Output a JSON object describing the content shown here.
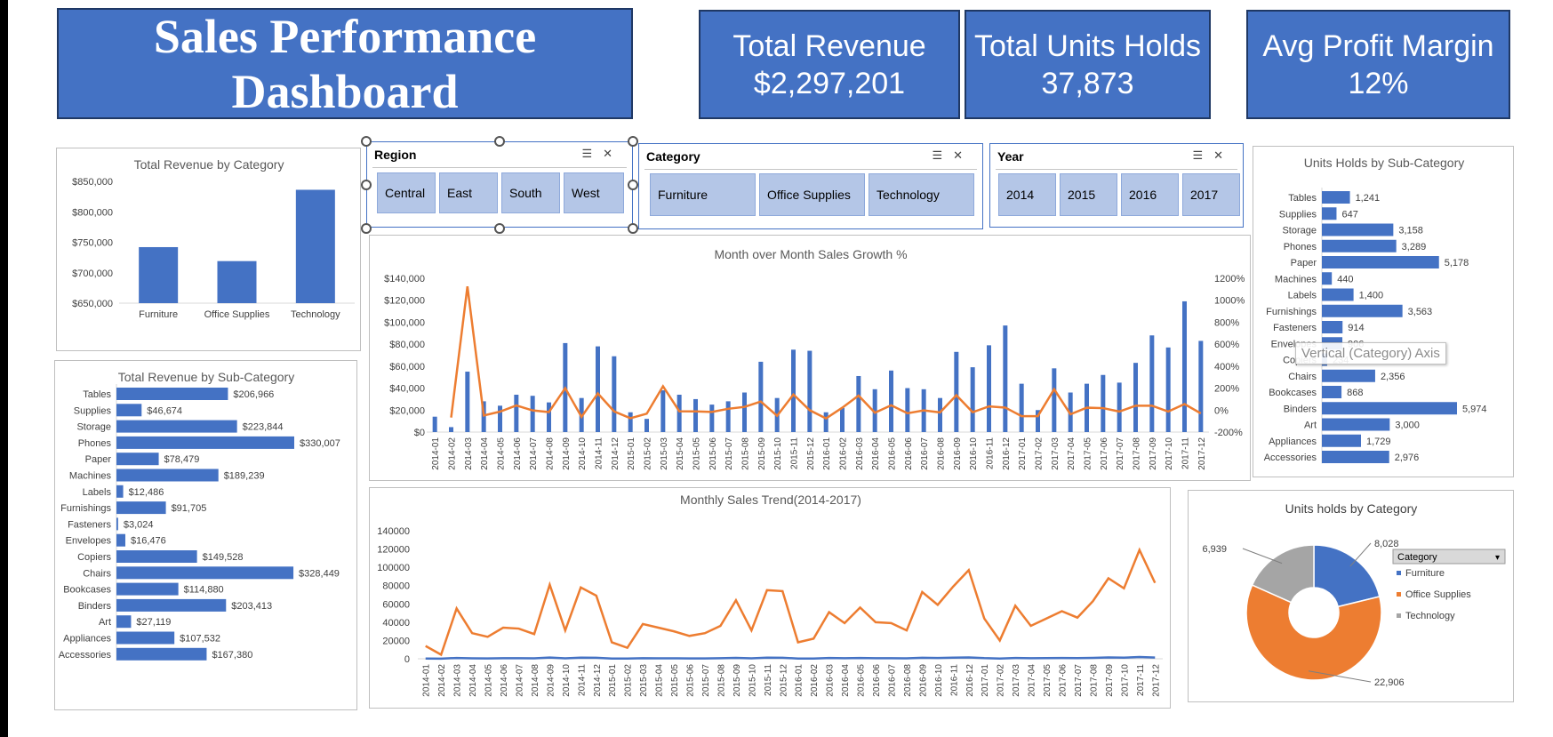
{
  "header": {
    "title": "Sales Performance Dashboard"
  },
  "kpis": [
    {
      "label": "Total Revenue",
      "value": "$2,297,201"
    },
    {
      "label": "Total Units Holds",
      "value": "37,873"
    },
    {
      "label": "Avg Profit Margin",
      "value": "12%"
    }
  ],
  "slicers": {
    "region": {
      "title": "Region",
      "items": [
        "Central",
        "East",
        "South",
        "West"
      ]
    },
    "category": {
      "title": "Category",
      "items": [
        "Furniture",
        "Office Supplies",
        "Technology"
      ]
    },
    "year": {
      "title": "Year",
      "items": [
        "2014",
        "2015",
        "2016",
        "2017"
      ]
    }
  },
  "icons": {
    "multi_select": "multi-select-icon",
    "clear_filter": "clear-filter-icon"
  },
  "colors": {
    "blue": "#4472C4",
    "orange": "#ED7D31",
    "gray": "#A5A5A5"
  },
  "tooltip": "Vertical (Category) Axis",
  "chart_data": [
    {
      "id": "rev_by_cat",
      "type": "bar",
      "title": "Total Revenue by Category",
      "categories": [
        "Furniture",
        "Office Supplies",
        "Technology"
      ],
      "values": [
        742000,
        719047,
        836154
      ],
      "ylim": [
        650000,
        850000
      ],
      "yticks": [
        "$650,000",
        "$700,000",
        "$750,000",
        "$800,000",
        "$850,000"
      ]
    },
    {
      "id": "rev_by_subcat",
      "type": "bar",
      "orientation": "horizontal",
      "title": "Total Revenue by Sub-Category",
      "categories": [
        "Tables",
        "Supplies",
        "Storage",
        "Phones",
        "Paper",
        "Machines",
        "Labels",
        "Furnishings",
        "Fasteners",
        "Envelopes",
        "Copiers",
        "Chairs",
        "Bookcases",
        "Binders",
        "Art",
        "Appliances",
        "Accessories"
      ],
      "values": [
        206966,
        46674,
        223844,
        330007,
        78479,
        189239,
        12486,
        91705,
        3024,
        16476,
        149528,
        328449,
        114880,
        203413,
        27119,
        107532,
        167380
      ],
      "labels": [
        "$206,966",
        "$46,674",
        "$223,844",
        "$330,007",
        "$78,479",
        "$189,239",
        "$12,486",
        "$91,705",
        "$3,024",
        "$16,476",
        "$149,528",
        "$328,449",
        "$114,880",
        "$203,413",
        "$27,119",
        "$107,532",
        "$167,380"
      ]
    },
    {
      "id": "units_by_subcat",
      "type": "bar",
      "orientation": "horizontal",
      "title": "Units Holds by Sub-Category",
      "categories": [
        "Tables",
        "Supplies",
        "Storage",
        "Phones",
        "Paper",
        "Machines",
        "Labels",
        "Furnishings",
        "Fasteners",
        "Envelopes",
        "Copiers",
        "Chairs",
        "Bookcases",
        "Binders",
        "Art",
        "Appliances",
        "Accessories"
      ],
      "values": [
        1241,
        647,
        3158,
        3289,
        5178,
        440,
        1400,
        3563,
        914,
        906,
        234,
        2356,
        868,
        5974,
        3000,
        1729,
        2976
      ],
      "labels": [
        "1,241",
        "647",
        "3,158",
        "3,289",
        "5,178",
        "440",
        "1,400",
        "3,563",
        "914",
        "906",
        "234",
        "2,356",
        "868",
        "5,974",
        "3,000",
        "1,729",
        "2,976"
      ]
    },
    {
      "id": "mom_growth",
      "type": "bar",
      "title": "Month over Month Sales Growth %",
      "x": [
        "2014-01",
        "2014-02",
        "2014-03",
        "2014-04",
        "2014-05",
        "2014-06",
        "2014-07",
        "2014-08",
        "2014-09",
        "2014-10",
        "2014-11",
        "2014-12",
        "2015-01",
        "2015-02",
        "2015-03",
        "2015-04",
        "2015-05",
        "2015-06",
        "2015-07",
        "2015-08",
        "2015-09",
        "2015-10",
        "2015-11",
        "2015-12",
        "2016-01",
        "2016-02",
        "2016-03",
        "2016-04",
        "2016-05",
        "2016-06",
        "2016-07",
        "2016-08",
        "2016-09",
        "2016-10",
        "2016-11",
        "2016-12",
        "2017-01",
        "2017-02",
        "2017-03",
        "2017-04",
        "2017-05",
        "2017-06",
        "2017-07",
        "2017-08",
        "2017-09",
        "2017-10",
        "2017-11",
        "2017-12"
      ],
      "series": [
        {
          "type": "bar",
          "axis": "left",
          "values": [
            14000,
            4500,
            55000,
            28000,
            24000,
            34000,
            33000,
            27000,
            81000,
            31000,
            78000,
            69000,
            18000,
            12000,
            38000,
            34000,
            30000,
            25000,
            28000,
            36000,
            64000,
            31000,
            75000,
            74000,
            18000,
            22000,
            51000,
            39000,
            56000,
            40000,
            39000,
            31000,
            73000,
            59000,
            79000,
            97000,
            44000,
            20000,
            58000,
            36000,
            44000,
            52000,
            45000,
            63000,
            88000,
            77000,
            119000,
            83000
          ]
        },
        {
          "type": "line",
          "axis": "right",
          "values": [
            null,
            -68,
            1126,
            -49,
            -14,
            42,
            -3,
            -18,
            200,
            -62,
            152,
            -12,
            -74,
            -33,
            217,
            -11,
            -12,
            -17,
            12,
            29,
            78,
            -52,
            142,
            -1,
            -76,
            22,
            132,
            -24,
            44,
            -29,
            -3,
            -21,
            135,
            -19,
            34,
            23,
            -55,
            -55,
            190,
            -38,
            22,
            18,
            -13,
            40,
            40,
            -13,
            55,
            -30
          ]
        }
      ],
      "ylim_left": [
        0,
        140000
      ],
      "yticks_left": [
        "$0",
        "$20,000",
        "$40,000",
        "$60,000",
        "$80,000",
        "$100,000",
        "$120,000",
        "$140,000"
      ],
      "ylim_right": [
        -200,
        1200
      ],
      "yticks_right": [
        "-200%",
        "0%",
        "200%",
        "400%",
        "600%",
        "800%",
        "1000%",
        "1200%"
      ]
    },
    {
      "id": "monthly_trend",
      "type": "line",
      "title": "Monthly Sales Trend(2014-2017)",
      "x": [
        "2014-01",
        "2014-02",
        "2014-03",
        "2014-04",
        "2014-05",
        "2014-06",
        "2014-07",
        "2014-08",
        "2014-09",
        "2014-10",
        "2014-11",
        "2014-12",
        "2015-01",
        "2015-02",
        "2015-03",
        "2015-04",
        "2015-05",
        "2015-06",
        "2015-07",
        "2015-08",
        "2015-09",
        "2015-10",
        "2015-11",
        "2015-12",
        "2016-01",
        "2016-02",
        "2016-03",
        "2016-04",
        "2016-05",
        "2016-06",
        "2016-07",
        "2016-08",
        "2016-09",
        "2016-10",
        "2016-11",
        "2016-12",
        "2017-01",
        "2017-02",
        "2017-03",
        "2017-04",
        "2017-05",
        "2017-06",
        "2017-07",
        "2017-08",
        "2017-09",
        "2017-10",
        "2017-11",
        "2017-12"
      ],
      "series": [
        {
          "color": "orange",
          "values": [
            14000,
            4500,
            55000,
            28000,
            24000,
            34000,
            33000,
            27000,
            81000,
            31000,
            78000,
            69000,
            18000,
            12000,
            38000,
            34000,
            30000,
            25000,
            28000,
            36000,
            64000,
            31000,
            75000,
            74000,
            18000,
            22000,
            51000,
            39000,
            56000,
            40000,
            39000,
            31000,
            73000,
            59000,
            79000,
            97000,
            44000,
            20000,
            58000,
            36000,
            44000,
            52000,
            45000,
            63000,
            88000,
            77000,
            119000,
            83000
          ]
        },
        {
          "color": "blue",
          "values": [
            300,
            100,
            900,
            500,
            400,
            600,
            600,
            500,
            1300,
            500,
            1200,
            1100,
            300,
            200,
            600,
            500,
            500,
            400,
            400,
            600,
            1000,
            500,
            1200,
            1100,
            300,
            300,
            800,
            600,
            900,
            600,
            600,
            500,
            1100,
            900,
            1200,
            1500,
            700,
            300,
            900,
            600,
            700,
            800,
            700,
            1000,
            1400,
            1200,
            1900,
            1300
          ]
        }
      ],
      "ylim": [
        0,
        140000
      ],
      "yticks": [
        "0",
        "20000",
        "40000",
        "60000",
        "80000",
        "100000",
        "120000",
        "140000"
      ]
    },
    {
      "id": "units_by_cat",
      "type": "pie",
      "donut": true,
      "title": "Units holds by Category",
      "categories": [
        "Furniture",
        "Office Supplies",
        "Technology"
      ],
      "values": [
        8028,
        22906,
        6939
      ],
      "labels": [
        "8,028",
        "22,906",
        "6,939"
      ],
      "legend_title": "Category",
      "legend": "right"
    }
  ]
}
